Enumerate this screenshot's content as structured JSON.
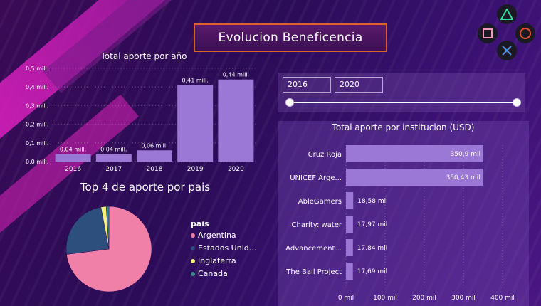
{
  "title": "Evolucion Beneficencia",
  "colors": {
    "bar": "#9b78d6",
    "accent": "#e0622b",
    "pie": [
      "#f080a8",
      "#2c4f7e",
      "#f5f07a",
      "#3d8a8a"
    ]
  },
  "year_chart_title": "Total aporte por año",
  "pie_chart_title": "Top 4 de aporte por pais",
  "inst_chart_title": "Total aporte por institucion (USD)",
  "slider": {
    "from": "2016",
    "to": "2020"
  },
  "legend": {
    "title": "pais",
    "items": [
      "Argentina",
      "Estados Unid...",
      "Inglaterra",
      "Canada"
    ]
  },
  "ps_buttons": [
    "triangle-icon",
    "square-icon",
    "circle-icon",
    "cross-icon"
  ],
  "chart_data": [
    {
      "type": "bar",
      "title": "Total aporte por año",
      "categories": [
        "2016",
        "2017",
        "2018",
        "2019",
        "2020"
      ],
      "values": [
        0.04,
        0.04,
        0.06,
        0.41,
        0.44
      ],
      "data_labels": [
        "0,04 mill.",
        "0,04 mill.",
        "0,06 mill.",
        "0,41 mill.",
        "0,44 mill."
      ],
      "ytick_labels": [
        "0,0 mill.",
        "0,1 mill.",
        "0,2 mill.",
        "0,3 mill.",
        "0,4 mill.",
        "0,5 mill."
      ],
      "ylim": [
        0,
        0.5
      ],
      "grid": true
    },
    {
      "type": "pie",
      "title": "Top 4 de aporte por pais",
      "categories": [
        "Argentina",
        "Estados Unid...",
        "Inglaterra",
        "Canada"
      ],
      "values": [
        73,
        24,
        2,
        1
      ],
      "legend_title": "pais",
      "legend_position": "right"
    },
    {
      "type": "bar",
      "orientation": "horizontal",
      "title": "Total aporte por institucion (USD)",
      "categories": [
        "Cruz Roja",
        "UNICEF Arge...",
        "AbleGamers",
        "Charity: water",
        "Advancement...",
        "The Bail Project"
      ],
      "values": [
        350.9,
        350.43,
        18.58,
        17.97,
        17.84,
        17.69
      ],
      "data_labels": [
        "350,9 mil",
        "350,43 mil",
        "18,58 mil",
        "17,97 mil",
        "17,84 mil",
        "17,69 mil"
      ],
      "xtick_labels": [
        "0 mil",
        "100 mil",
        "200 mil",
        "300 mil",
        "400 mil"
      ],
      "xlim": [
        0,
        400
      ],
      "grid": true
    }
  ]
}
